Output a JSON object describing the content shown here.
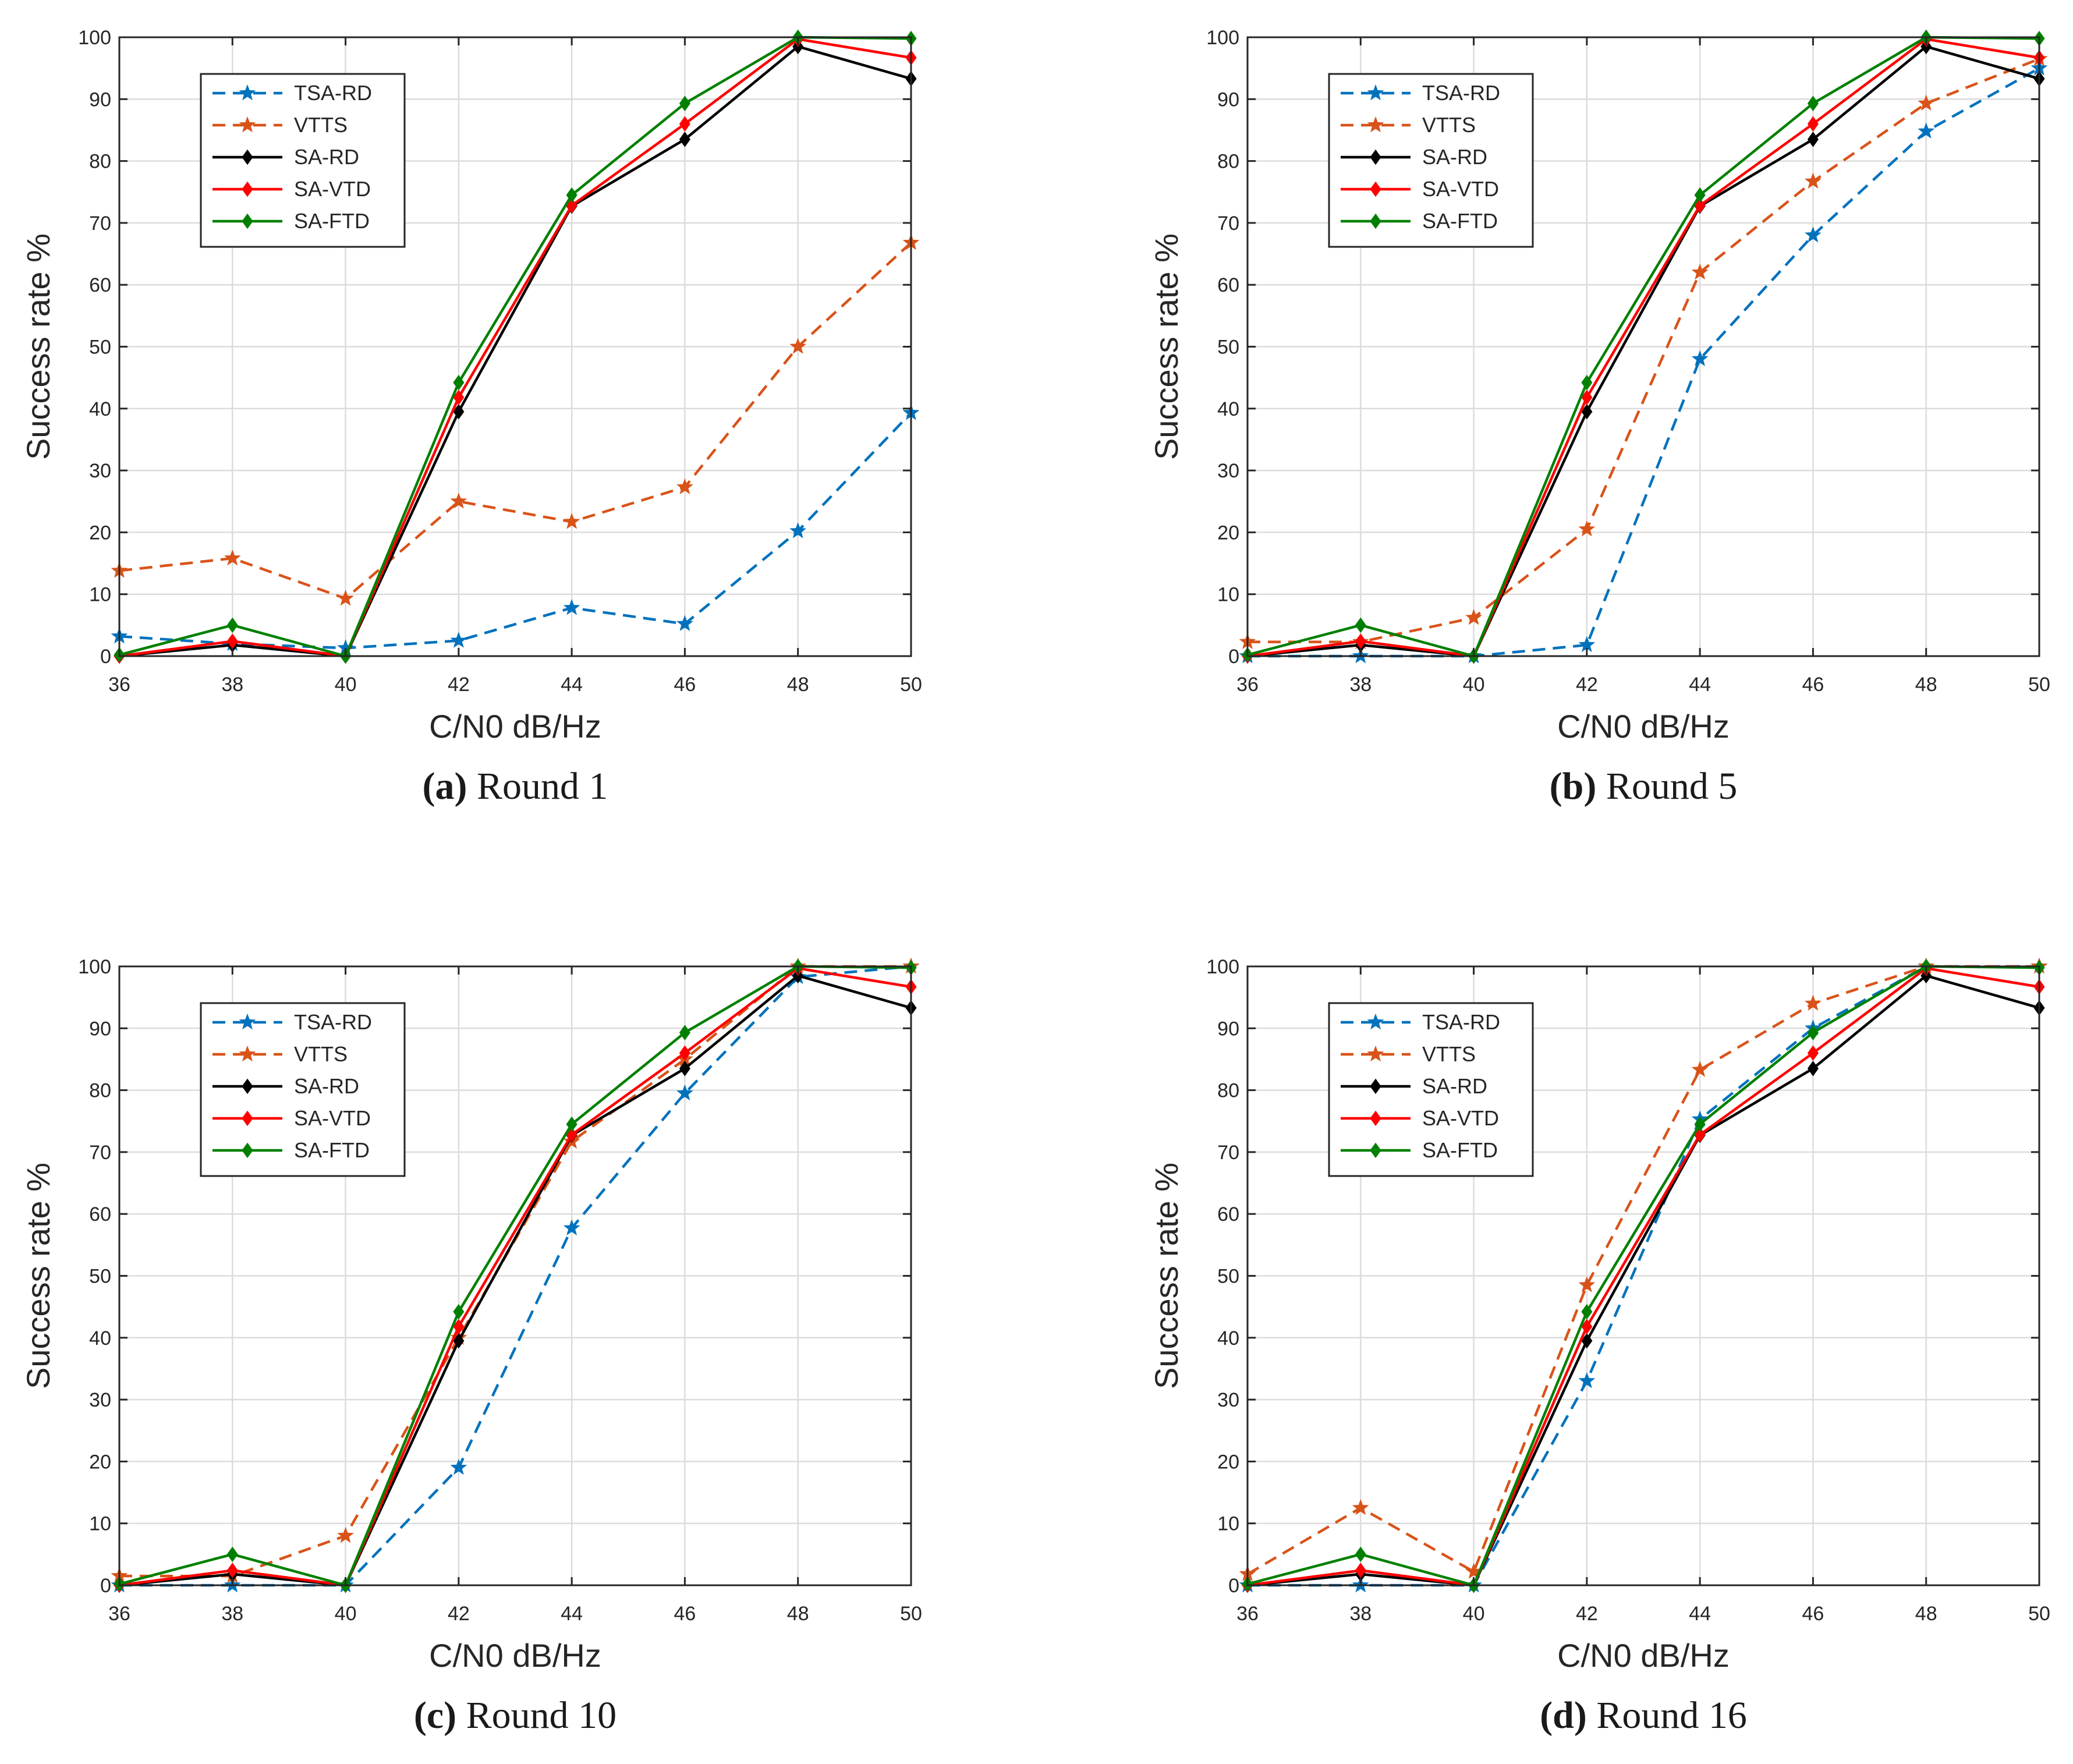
{
  "shared": {
    "x": [
      36,
      38,
      40,
      42,
      44,
      46,
      48,
      50
    ],
    "xlabel": "C/N0 dB/Hz",
    "ylabel": "Success rate %",
    "xlim": [
      36,
      50
    ],
    "ylim": [
      0,
      100
    ],
    "xticks": [
      36,
      38,
      40,
      42,
      44,
      46,
      48,
      50
    ],
    "yticks": [
      0,
      10,
      20,
      30,
      40,
      50,
      60,
      70,
      80,
      90,
      100
    ],
    "grid": true,
    "legend_position": "top-left",
    "series_styles": {
      "TSA-RD": {
        "color": "#0072BD",
        "dash": "dashed",
        "marker": "star"
      },
      "VTTS": {
        "color": "#D95319",
        "dash": "dashed",
        "marker": "star"
      },
      "SA-RD": {
        "color": "#000000",
        "dash": "solid",
        "marker": "diamond"
      },
      "SA-VTD": {
        "color": "#FF0000",
        "dash": "solid",
        "marker": "diamond"
      },
      "SA-FTD": {
        "color": "#008000",
        "dash": "solid",
        "marker": "diamond"
      }
    }
  },
  "chart_data": [
    {
      "type": "line",
      "panel_label": "(a)",
      "caption": "Round 1",
      "xlabel": "C/N0 dB/Hz",
      "ylabel": "Success rate %",
      "xlim": [
        36,
        50
      ],
      "ylim": [
        0,
        100
      ],
      "series": [
        {
          "name": "TSA-RD",
          "values": [
            3.2,
            2.0,
            1.3,
            2.5,
            7.8,
            5.2,
            20.2,
            39.3
          ]
        },
        {
          "name": "VTTS",
          "values": [
            13.8,
            15.8,
            9.3,
            25.0,
            21.7,
            27.3,
            50.0,
            66.8
          ]
        },
        {
          "name": "SA-RD",
          "values": [
            0,
            1.8,
            0,
            39.5,
            72.7,
            83.5,
            98.5,
            93.3
          ]
        },
        {
          "name": "SA-VTD",
          "values": [
            0,
            2.4,
            0,
            41.8,
            72.8,
            86.0,
            99.7,
            96.7
          ]
        },
        {
          "name": "SA-FTD",
          "values": [
            0.2,
            5.0,
            0,
            44.2,
            74.5,
            89.3,
            100,
            99.8
          ]
        }
      ]
    },
    {
      "type": "line",
      "panel_label": "(b)",
      "caption": "Round 5",
      "xlabel": "C/N0 dB/Hz",
      "ylabel": "Success rate %",
      "xlim": [
        36,
        50
      ],
      "ylim": [
        0,
        100
      ],
      "series": [
        {
          "name": "TSA-RD",
          "values": [
            0,
            0,
            0,
            1.8,
            48.0,
            68.0,
            84.8,
            95.0
          ]
        },
        {
          "name": "VTTS",
          "values": [
            2.3,
            2.3,
            6.2,
            20.5,
            62.0,
            76.7,
            89.3,
            96.5
          ]
        },
        {
          "name": "SA-RD",
          "values": [
            0,
            1.8,
            0,
            39.5,
            72.7,
            83.5,
            98.5,
            93.3
          ]
        },
        {
          "name": "SA-VTD",
          "values": [
            0,
            2.4,
            0,
            41.8,
            72.8,
            86.0,
            99.7,
            96.7
          ]
        },
        {
          "name": "SA-FTD",
          "values": [
            0.2,
            5.0,
            0,
            44.2,
            74.5,
            89.3,
            100,
            99.8
          ]
        }
      ]
    },
    {
      "type": "line",
      "panel_label": "(c)",
      "caption": "Round 10",
      "xlabel": "C/N0 dB/Hz",
      "ylabel": "Success rate %",
      "xlim": [
        36,
        50
      ],
      "ylim": [
        0,
        100
      ],
      "series": [
        {
          "name": "TSA-RD",
          "values": [
            0,
            0,
            0,
            19.0,
            57.7,
            79.5,
            98.3,
            100
          ]
        },
        {
          "name": "VTTS",
          "values": [
            1.5,
            1.5,
            8.0,
            40.0,
            71.7,
            85.0,
            100,
            100
          ]
        },
        {
          "name": "SA-RD",
          "values": [
            0,
            1.8,
            0,
            39.5,
            72.7,
            83.5,
            98.5,
            93.3
          ]
        },
        {
          "name": "SA-VTD",
          "values": [
            0,
            2.4,
            0,
            41.8,
            72.8,
            86.0,
            99.7,
            96.7
          ]
        },
        {
          "name": "SA-FTD",
          "values": [
            0.2,
            5.0,
            0,
            44.2,
            74.5,
            89.3,
            100,
            99.8
          ]
        }
      ]
    },
    {
      "type": "line",
      "panel_label": "(d)",
      "caption": "Round 16",
      "xlabel": "C/N0 dB/Hz",
      "ylabel": "Success rate %",
      "xlim": [
        36,
        50
      ],
      "ylim": [
        0,
        100
      ],
      "series": [
        {
          "name": "TSA-RD",
          "values": [
            0,
            0,
            0,
            33.0,
            75.3,
            90.0,
            100,
            100
          ]
        },
        {
          "name": "VTTS",
          "values": [
            1.8,
            12.5,
            2.2,
            48.5,
            83.3,
            94.0,
            100,
            100
          ]
        },
        {
          "name": "SA-RD",
          "values": [
            0,
            1.8,
            0,
            39.5,
            72.7,
            83.5,
            98.5,
            93.3
          ]
        },
        {
          "name": "SA-VTD",
          "values": [
            0,
            2.4,
            0,
            41.8,
            72.8,
            86.0,
            99.7,
            96.7
          ]
        },
        {
          "name": "SA-FTD",
          "values": [
            0.2,
            5.0,
            0,
            44.2,
            74.5,
            89.3,
            100,
            99.8
          ]
        }
      ]
    }
  ]
}
